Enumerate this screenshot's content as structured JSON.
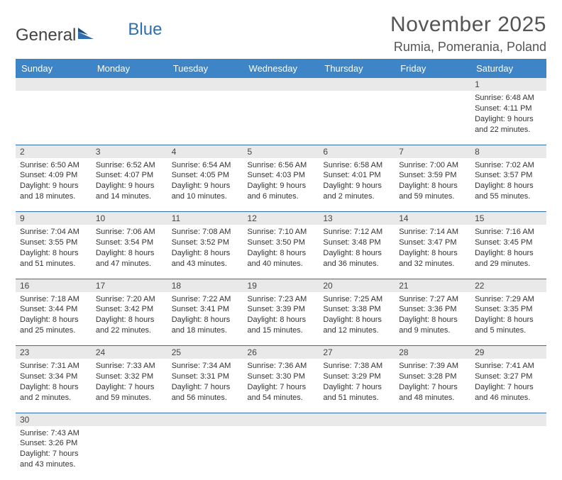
{
  "logo": {
    "part1": "General",
    "part2": "Blue"
  },
  "title": "November 2025",
  "location": "Rumia, Pomerania, Poland",
  "colors": {
    "header_bg": "#3d85c6",
    "header_text": "#ffffff",
    "row_divider": "#2f6fb0",
    "daynum_bg": "#e9e9e9",
    "text": "#333333",
    "brand_blue": "#2f6fb0"
  },
  "weekdays": [
    "Sunday",
    "Monday",
    "Tuesday",
    "Wednesday",
    "Thursday",
    "Friday",
    "Saturday"
  ],
  "weeks": [
    [
      null,
      null,
      null,
      null,
      null,
      null,
      {
        "n": "1",
        "sr": "6:48 AM",
        "ss": "4:11 PM",
        "dl": "9 hours and 22 minutes."
      }
    ],
    [
      {
        "n": "2",
        "sr": "6:50 AM",
        "ss": "4:09 PM",
        "dl": "9 hours and 18 minutes."
      },
      {
        "n": "3",
        "sr": "6:52 AM",
        "ss": "4:07 PM",
        "dl": "9 hours and 14 minutes."
      },
      {
        "n": "4",
        "sr": "6:54 AM",
        "ss": "4:05 PM",
        "dl": "9 hours and 10 minutes."
      },
      {
        "n": "5",
        "sr": "6:56 AM",
        "ss": "4:03 PM",
        "dl": "9 hours and 6 minutes."
      },
      {
        "n": "6",
        "sr": "6:58 AM",
        "ss": "4:01 PM",
        "dl": "9 hours and 2 minutes."
      },
      {
        "n": "7",
        "sr": "7:00 AM",
        "ss": "3:59 PM",
        "dl": "8 hours and 59 minutes."
      },
      {
        "n": "8",
        "sr": "7:02 AM",
        "ss": "3:57 PM",
        "dl": "8 hours and 55 minutes."
      }
    ],
    [
      {
        "n": "9",
        "sr": "7:04 AM",
        "ss": "3:55 PM",
        "dl": "8 hours and 51 minutes."
      },
      {
        "n": "10",
        "sr": "7:06 AM",
        "ss": "3:54 PM",
        "dl": "8 hours and 47 minutes."
      },
      {
        "n": "11",
        "sr": "7:08 AM",
        "ss": "3:52 PM",
        "dl": "8 hours and 43 minutes."
      },
      {
        "n": "12",
        "sr": "7:10 AM",
        "ss": "3:50 PM",
        "dl": "8 hours and 40 minutes."
      },
      {
        "n": "13",
        "sr": "7:12 AM",
        "ss": "3:48 PM",
        "dl": "8 hours and 36 minutes."
      },
      {
        "n": "14",
        "sr": "7:14 AM",
        "ss": "3:47 PM",
        "dl": "8 hours and 32 minutes."
      },
      {
        "n": "15",
        "sr": "7:16 AM",
        "ss": "3:45 PM",
        "dl": "8 hours and 29 minutes."
      }
    ],
    [
      {
        "n": "16",
        "sr": "7:18 AM",
        "ss": "3:44 PM",
        "dl": "8 hours and 25 minutes."
      },
      {
        "n": "17",
        "sr": "7:20 AM",
        "ss": "3:42 PM",
        "dl": "8 hours and 22 minutes."
      },
      {
        "n": "18",
        "sr": "7:22 AM",
        "ss": "3:41 PM",
        "dl": "8 hours and 18 minutes."
      },
      {
        "n": "19",
        "sr": "7:23 AM",
        "ss": "3:39 PM",
        "dl": "8 hours and 15 minutes."
      },
      {
        "n": "20",
        "sr": "7:25 AM",
        "ss": "3:38 PM",
        "dl": "8 hours and 12 minutes."
      },
      {
        "n": "21",
        "sr": "7:27 AM",
        "ss": "3:36 PM",
        "dl": "8 hours and 9 minutes."
      },
      {
        "n": "22",
        "sr": "7:29 AM",
        "ss": "3:35 PM",
        "dl": "8 hours and 5 minutes."
      }
    ],
    [
      {
        "n": "23",
        "sr": "7:31 AM",
        "ss": "3:34 PM",
        "dl": "8 hours and 2 minutes."
      },
      {
        "n": "24",
        "sr": "7:33 AM",
        "ss": "3:32 PM",
        "dl": "7 hours and 59 minutes."
      },
      {
        "n": "25",
        "sr": "7:34 AM",
        "ss": "3:31 PM",
        "dl": "7 hours and 56 minutes."
      },
      {
        "n": "26",
        "sr": "7:36 AM",
        "ss": "3:30 PM",
        "dl": "7 hours and 54 minutes."
      },
      {
        "n": "27",
        "sr": "7:38 AM",
        "ss": "3:29 PM",
        "dl": "7 hours and 51 minutes."
      },
      {
        "n": "28",
        "sr": "7:39 AM",
        "ss": "3:28 PM",
        "dl": "7 hours and 48 minutes."
      },
      {
        "n": "29",
        "sr": "7:41 AM",
        "ss": "3:27 PM",
        "dl": "7 hours and 46 minutes."
      }
    ],
    [
      {
        "n": "30",
        "sr": "7:43 AM",
        "ss": "3:26 PM",
        "dl": "7 hours and 43 minutes."
      },
      null,
      null,
      null,
      null,
      null,
      null
    ]
  ],
  "labels": {
    "sunrise": "Sunrise:",
    "sunset": "Sunset:",
    "daylight": "Daylight:"
  }
}
